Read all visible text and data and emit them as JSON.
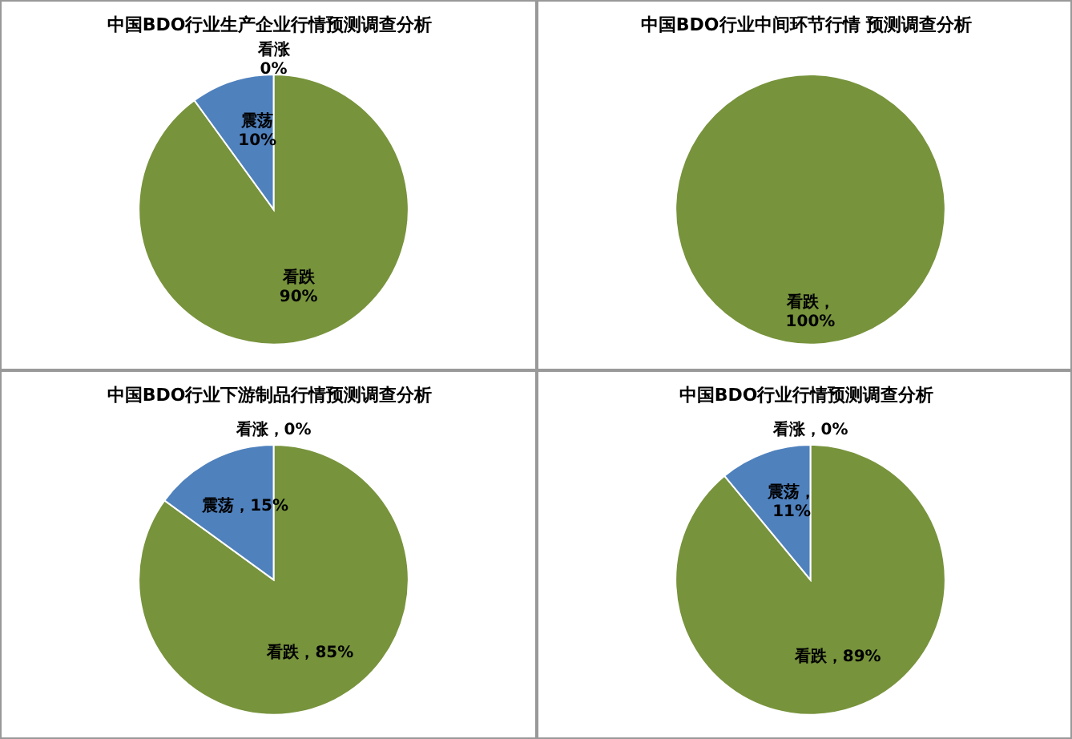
{
  "chart_data": [
    {
      "type": "pie",
      "title": "中国BDO行业生产企业行情预测调查分析",
      "categories": [
        "看涨",
        "看跌",
        "震荡"
      ],
      "values": [
        0,
        90,
        10
      ],
      "colors": [
        "#4f81bd",
        "#77933c",
        "#4f81bd"
      ],
      "value_labels": [
        "\n0%",
        "\n90%",
        "\n10%"
      ]
    },
    {
      "type": "pie",
      "title": "中国BDO行业中间环节行情 预测调查分析",
      "categories": [
        "看跌"
      ],
      "values": [
        100
      ],
      "colors": [
        "#77933c"
      ],
      "value_labels": [
        "，\n100%"
      ]
    },
    {
      "type": "pie",
      "title": "中国BDO行业下游制品行情预测调查分析",
      "categories": [
        "看涨",
        "看跌",
        "震荡"
      ],
      "values": [
        0,
        85,
        15
      ],
      "colors": [
        "#4f81bd",
        "#77933c",
        "#4f81bd"
      ],
      "value_labels": [
        "，0%",
        "，85%",
        "，15%"
      ]
    },
    {
      "type": "pie",
      "title": "中国BDO行业行情预测调查分析",
      "categories": [
        "看涨",
        "看跌",
        "震荡"
      ],
      "values": [
        0,
        89,
        11
      ],
      "colors": [
        "#4f81bd",
        "#77933c",
        "#4f81bd"
      ],
      "value_labels": [
        "，0%",
        "，89%",
        "，\n11%"
      ]
    }
  ]
}
